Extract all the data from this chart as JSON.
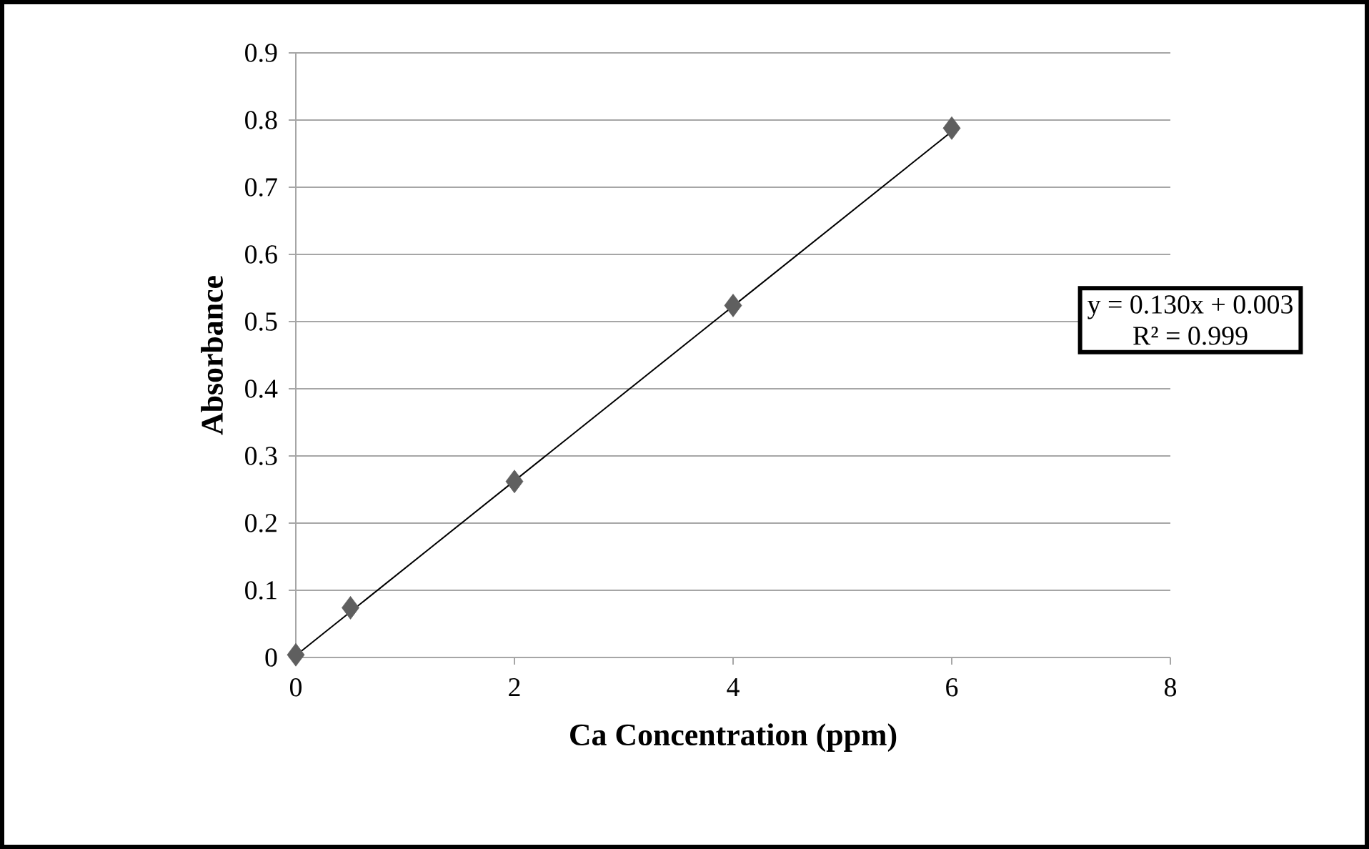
{
  "chart_data": {
    "type": "scatter",
    "xlabel": "Ca Concentration (ppm)",
    "ylabel": "Absorbance",
    "xlim": [
      0,
      8
    ],
    "ylim": [
      0,
      0.9
    ],
    "xticks": [
      0,
      2,
      4,
      6,
      8
    ],
    "yticks": [
      0,
      0.1,
      0.2,
      0.3,
      0.4,
      0.5,
      0.6,
      0.7,
      0.8,
      0.9
    ],
    "grid": "y",
    "series": [
      {
        "marker": "diamond",
        "color": "#5f5f5f",
        "x": [
          0,
          0.5,
          2,
          4,
          6
        ],
        "values": [
          0.004,
          0.074,
          0.262,
          0.524,
          0.788
        ]
      },
      {
        "type": "line",
        "marker": "none",
        "color": "#000000",
        "x": [
          0,
          6
        ],
        "values": [
          0.003,
          0.783
        ]
      }
    ],
    "annotations": [
      "y = 0.130x + 0.003",
      "R² = 0.999"
    ]
  }
}
